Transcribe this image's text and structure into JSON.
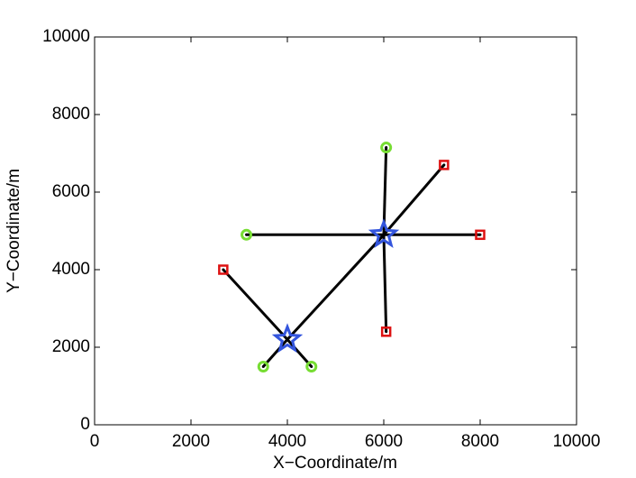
{
  "chart_data": {
    "type": "scatter",
    "xlabel": "X−Coordinate/m",
    "ylabel": "Y−Coordinate/m",
    "xlim": [
      0,
      10000
    ],
    "ylim": [
      0,
      10000
    ],
    "xticks": [
      0,
      2000,
      4000,
      6000,
      8000,
      10000
    ],
    "yticks": [
      0,
      2000,
      4000,
      6000,
      8000,
      10000
    ],
    "grid": false,
    "line_color": "#000000",
    "segments": [
      {
        "x": [
          6000,
          6050
        ],
        "y": [
          4900,
          7150
        ]
      },
      {
        "x": [
          6000,
          7250
        ],
        "y": [
          4900,
          6700
        ]
      },
      {
        "x": [
          6000,
          8000
        ],
        "y": [
          4900,
          4900
        ]
      },
      {
        "x": [
          6000,
          3150
        ],
        "y": [
          4900,
          4900
        ]
      },
      {
        "x": [
          6000,
          6050
        ],
        "y": [
          4900,
          2400
        ]
      },
      {
        "x": [
          6000,
          4000
        ],
        "y": [
          4900,
          2200
        ]
      },
      {
        "x": [
          4000,
          2670
        ],
        "y": [
          2200,
          4000
        ]
      },
      {
        "x": [
          4000,
          3500
        ],
        "y": [
          2200,
          1500
        ]
      },
      {
        "x": [
          4000,
          4500
        ],
        "y": [
          2200,
          1500
        ]
      }
    ],
    "series": [
      {
        "marker": "circle",
        "color": "#77dd33",
        "x": [
          6050,
          3150,
          3500,
          4500
        ],
        "y": [
          7150,
          4900,
          1500,
          1500
        ]
      },
      {
        "marker": "square",
        "color": "#dd1111",
        "x": [
          7250,
          8000,
          6050,
          2670
        ],
        "y": [
          6700,
          4900,
          2400,
          4000
        ]
      },
      {
        "marker": "star",
        "color": "#3355dd",
        "x": [
          4000,
          6000
        ],
        "y": [
          2200,
          4900
        ]
      }
    ]
  }
}
